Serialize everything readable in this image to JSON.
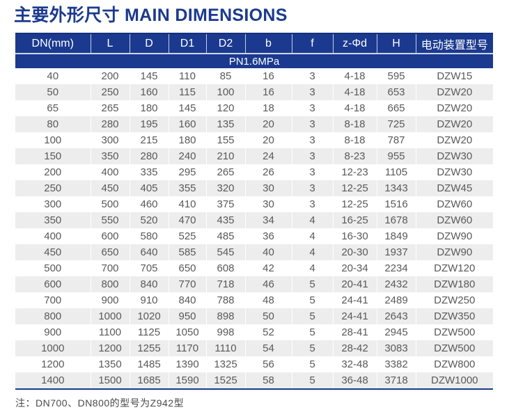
{
  "title": "主要外形尺寸 MAIN DIMENSIONS",
  "table": {
    "columns": [
      "DN(mm)",
      "L",
      "D",
      "D1",
      "D2",
      "b",
      "f",
      "z-Φd",
      "H",
      "电动装置型号"
    ],
    "pressure_band": "PN1.6MPa",
    "rows": [
      [
        "40",
        "200",
        "145",
        "110",
        "85",
        "16",
        "3",
        "4-18",
        "595",
        "DZW15"
      ],
      [
        "50",
        "250",
        "160",
        "115",
        "100",
        "16",
        "3",
        "4-18",
        "653",
        "DZW20"
      ],
      [
        "65",
        "265",
        "180",
        "145",
        "120",
        "18",
        "3",
        "4-18",
        "665",
        "DZW20"
      ],
      [
        "80",
        "280",
        "195",
        "160",
        "135",
        "20",
        "3",
        "8-18",
        "725",
        "DZW20"
      ],
      [
        "100",
        "300",
        "215",
        "180",
        "155",
        "20",
        "3",
        "8-18",
        "787",
        "DZW20"
      ],
      [
        "150",
        "350",
        "280",
        "240",
        "210",
        "24",
        "3",
        "8-23",
        "955",
        "DZW30"
      ],
      [
        "200",
        "400",
        "335",
        "295",
        "265",
        "26",
        "3",
        "12-23",
        "1105",
        "DZW30"
      ],
      [
        "250",
        "450",
        "405",
        "355",
        "320",
        "30",
        "3",
        "12-25",
        "1343",
        "DZW45"
      ],
      [
        "300",
        "500",
        "460",
        "410",
        "375",
        "30",
        "3",
        "12-25",
        "1516",
        "DZW60"
      ],
      [
        "350",
        "550",
        "520",
        "470",
        "435",
        "34",
        "4",
        "16-25",
        "1678",
        "DZW60"
      ],
      [
        "400",
        "600",
        "580",
        "525",
        "485",
        "36",
        "4",
        "16-30",
        "1849",
        "DZW90"
      ],
      [
        "450",
        "650",
        "640",
        "585",
        "545",
        "40",
        "4",
        "20-30",
        "1937",
        "DZW90"
      ],
      [
        "500",
        "700",
        "705",
        "650",
        "608",
        "42",
        "4",
        "20-34",
        "2234",
        "DZW120"
      ],
      [
        "600",
        "800",
        "840",
        "770",
        "718",
        "46",
        "5",
        "20-41",
        "2432",
        "DZW180"
      ],
      [
        "700",
        "900",
        "910",
        "840",
        "788",
        "48",
        "5",
        "24-41",
        "2489",
        "DZW250"
      ],
      [
        "800",
        "1000",
        "1020",
        "950",
        "898",
        "50",
        "5",
        "24-41",
        "2643",
        "DZW350"
      ],
      [
        "900",
        "1100",
        "1125",
        "1050",
        "998",
        "52",
        "5",
        "28-41",
        "2945",
        "DZW500"
      ],
      [
        "1000",
        "1200",
        "1255",
        "1170",
        "1110",
        "54",
        "5",
        "28-42",
        "3083",
        "DZW500"
      ],
      [
        "1200",
        "1350",
        "1485",
        "1390",
        "1325",
        "56",
        "5",
        "32-48",
        "3382",
        "DZW800"
      ],
      [
        "1400",
        "1500",
        "1685",
        "1590",
        "1525",
        "58",
        "5",
        "36-48",
        "3718",
        "DZW1000"
      ]
    ]
  },
  "note": "注：DN700、DN800的型号为Z942型",
  "colors": {
    "header_bg": "#1b3a8f",
    "title_text": "#1b3a8f",
    "row_stripe": "#ededed",
    "cell_text": "#595959",
    "note_text": "#4a4a4a"
  }
}
